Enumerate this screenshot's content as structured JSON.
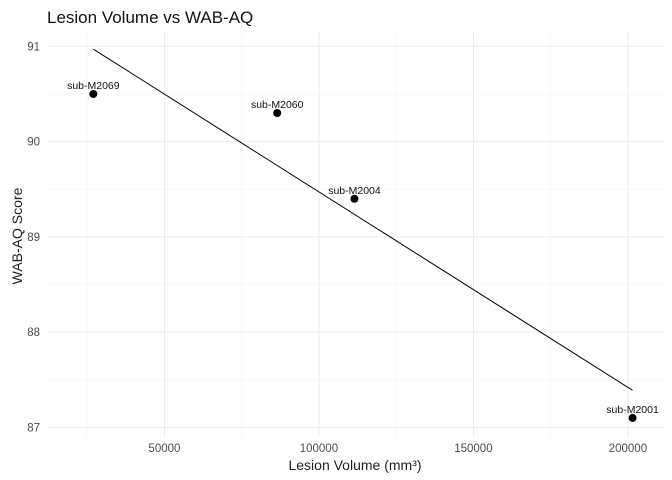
{
  "chart_data": {
    "type": "scatter",
    "title": "Lesion Volume vs WAB-AQ",
    "xlabel": "Lesion Volume (mm³)",
    "ylabel": "WAB-AQ Score",
    "xlim": [
      12000,
      212000
    ],
    "ylim": [
      86.9,
      91.15
    ],
    "xticks": [
      50000,
      100000,
      150000,
      200000
    ],
    "xtick_labels": [
      "50000",
      "100000",
      "150000",
      "200000"
    ],
    "yticks": [
      87,
      88,
      89,
      90,
      91
    ],
    "ytick_labels": [
      "87",
      "88",
      "89",
      "90",
      "91"
    ],
    "grid": true,
    "points": [
      {
        "label": "sub-M2069",
        "x": 27000,
        "y": 90.5
      },
      {
        "label": "sub-M2060",
        "x": 86500,
        "y": 90.3
      },
      {
        "label": "sub-M2004",
        "x": 111500,
        "y": 89.4
      },
      {
        "label": "sub-M2001",
        "x": 201500,
        "y": 87.1
      }
    ],
    "trend_line": {
      "x": [
        27000,
        201500
      ],
      "y": [
        90.97,
        87.39
      ]
    },
    "colors": {
      "point": "#000000",
      "line": "#000000",
      "grid": "#ebebeb"
    }
  }
}
